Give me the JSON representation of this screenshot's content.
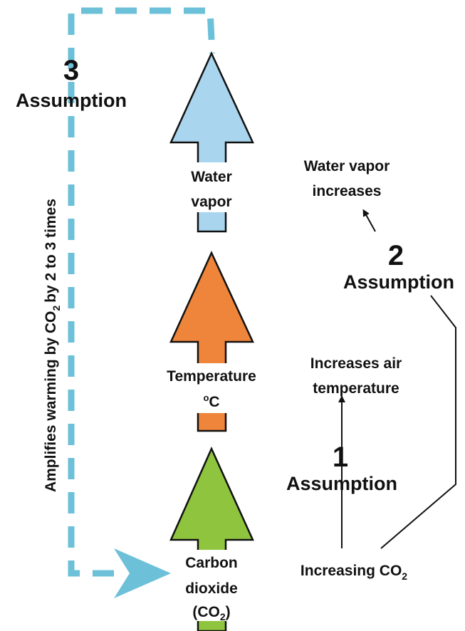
{
  "left": {
    "number": "3",
    "label": "Assumption",
    "note": {
      "before": "Amplifies warming by CO",
      "sub": "2",
      "after": "by 2 to 3 times"
    }
  },
  "arrows": [
    {
      "lines": [
        "Water",
        "vapor"
      ]
    },
    {
      "lines": [
        "Temperature"
      ],
      "unit": {
        "sup": "o",
        "text": "C"
      }
    },
    {
      "lines": [
        "Carbon",
        "dioxide"
      ],
      "formula": {
        "open": "(CO",
        "sub": "2",
        "close": ")"
      }
    }
  ],
  "right": {
    "step2": {
      "result": [
        "Water vapor",
        "increases"
      ],
      "number": "2",
      "label": "Assumption"
    },
    "step1": {
      "result": [
        "Increases air",
        "temperature"
      ],
      "number": "1",
      "label": "Assumption"
    },
    "start": {
      "text": "Increasing CO",
      "sub": "2"
    }
  }
}
